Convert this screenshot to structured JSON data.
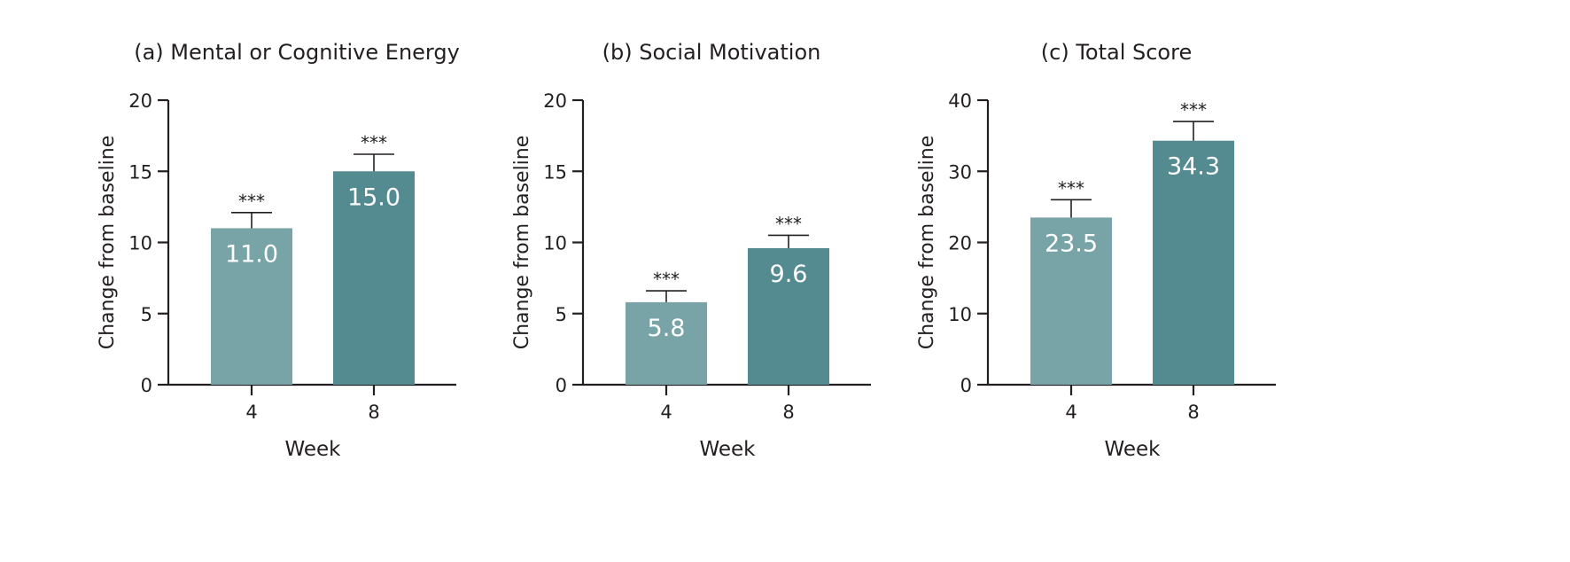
{
  "colors": {
    "week4": "#78a4a8",
    "week8": "#548b91",
    "axis": "#231f20",
    "label_in_bar": "#ffffff"
  },
  "chart_data": [
    {
      "type": "bar",
      "title": "(a) Mental or Cognitive Energy",
      "xlabel": "Week",
      "ylabel": "Change from baseline",
      "categories": [
        "4",
        "8"
      ],
      "values": [
        11.0,
        15.0
      ],
      "value_labels": [
        "11.0",
        "15.0"
      ],
      "error": [
        1.1,
        1.2
      ],
      "significance": [
        "***",
        "***"
      ],
      "ylim": [
        0,
        20
      ],
      "yticks": [
        0,
        5,
        10,
        15,
        20
      ],
      "ytick_labels": [
        "0",
        "5",
        "10",
        "15",
        "20"
      ]
    },
    {
      "type": "bar",
      "title": "(b) Social Motivation",
      "xlabel": "Week",
      "ylabel": "Change from baseline",
      "categories": [
        "4",
        "8"
      ],
      "values": [
        5.8,
        9.6
      ],
      "value_labels": [
        "5.8",
        "9.6"
      ],
      "error": [
        0.8,
        0.9
      ],
      "significance": [
        "***",
        "***"
      ],
      "ylim": [
        0,
        20
      ],
      "yticks": [
        0,
        5,
        10,
        15,
        20
      ],
      "ytick_labels": [
        "0",
        "5",
        "10",
        "15",
        "20"
      ]
    },
    {
      "type": "bar",
      "title": "(c) Total Score",
      "xlabel": "Week",
      "ylabel": "Change from baseline",
      "categories": [
        "4",
        "8"
      ],
      "values": [
        23.5,
        34.3
      ],
      "value_labels": [
        "23.5",
        "34.3"
      ],
      "error": [
        2.5,
        2.7
      ],
      "significance": [
        "***",
        "***"
      ],
      "ylim": [
        0,
        40
      ],
      "yticks": [
        0,
        10,
        20,
        30,
        40
      ],
      "ytick_labels": [
        "0",
        "10",
        "20",
        "30",
        "40"
      ]
    }
  ]
}
